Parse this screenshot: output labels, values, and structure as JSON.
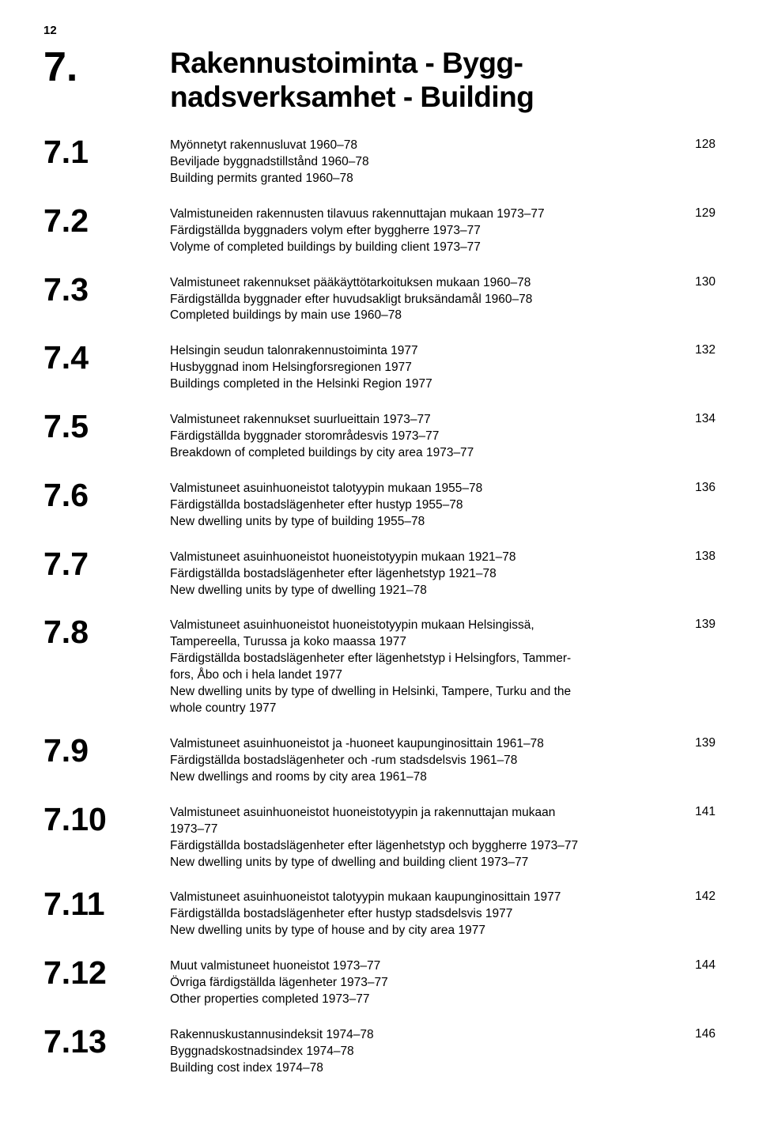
{
  "page_number_top": "12",
  "chapter_number": "7.",
  "chapter_title_line1": "Rakennustoiminta - Bygg-",
  "chapter_title_line2": "nadsverksamhet - Building",
  "typography": {
    "body_fontsize_pt": 15.5,
    "section_num_fontsize_pt": 41,
    "chapter_num_fontsize_pt": 52,
    "title_fontsize_pt": 37,
    "font_family": "Arial",
    "text_color": "#000000",
    "background_color": "#ffffff"
  },
  "entries": [
    {
      "num": "7.1",
      "page": "128",
      "lines": [
        "Myönnetyt rakennusluvat 1960–78",
        "Beviljade byggnadstillstånd 1960–78",
        "Building permits granted 1960–78"
      ]
    },
    {
      "num": "7.2",
      "page": "129",
      "lines": [
        "Valmistuneiden rakennusten tilavuus rakennuttajan mukaan 1973–77",
        "Färdigställda byggnaders volym efter byggherre 1973–77",
        "Volyme of completed buildings by building client 1973–77"
      ]
    },
    {
      "num": "7.3",
      "page": "130",
      "lines": [
        "Valmistuneet rakennukset pääkäyttötarkoituksen mukaan 1960–78",
        "Färdigställda byggnader efter huvudsakligt bruksändamål 1960–78",
        "Completed buildings by main use 1960–78"
      ]
    },
    {
      "num": "7.4",
      "page": "132",
      "lines": [
        "Helsingin seudun talonrakennustoiminta 1977",
        "Husbyggnad inom Helsingforsregionen 1977",
        "Buildings completed in the Helsinki Region 1977"
      ]
    },
    {
      "num": "7.5",
      "page": "134",
      "lines": [
        "Valmistuneet rakennukset suurlueittain 1973–77",
        "Färdigställda byggnader storområdesvis 1973–77",
        "Breakdown of completed buildings by city area 1973–77"
      ]
    },
    {
      "num": "7.6",
      "page": "136",
      "lines": [
        "Valmistuneet asuinhuoneistot talotyypin mukaan 1955–78",
        "Färdigställda bostadslägenheter efter hustyp 1955–78",
        "New dwelling units by type of building 1955–78"
      ]
    },
    {
      "num": "7.7",
      "page": "138",
      "lines": [
        "Valmistuneet asuinhuoneistot huoneistotyypin mukaan 1921–78",
        "Färdigställda bostadslägenheter efter lägenhetstyp 1921–78",
        "New dwelling units by type of dwelling 1921–78"
      ]
    },
    {
      "num": "7.8",
      "page": "139",
      "lines": [
        "Valmistuneet asuinhuoneistot huoneistotyypin mukaan Helsingissä,",
        "Tampereella, Turussa ja koko maassa 1977",
        "Färdigställda bostadslägenheter efter lägenhetstyp i Helsingfors, Tammer-",
        "fors, Åbo och i hela landet 1977",
        "New dwelling units by type of dwelling in Helsinki, Tampere, Turku and the",
        "whole country 1977"
      ]
    },
    {
      "num": "7.9",
      "page": "139",
      "lines": [
        "Valmistuneet asuinhuoneistot ja -huoneet kaupunginosittain 1961–78",
        "Färdigställda bostadslägenheter och -rum stadsdelsvis 1961–78",
        "New dwellings and rooms by city area 1961–78"
      ]
    },
    {
      "num": "7.10",
      "page": "141",
      "lines": [
        "Valmistuneet asuinhuoneistot huoneistotyypin ja rakennuttajan mukaan",
        "1973–77",
        "Färdigställda bostadslägenheter efter lägenhetstyp och byggherre 1973–77",
        "New dwelling units by type of dwelling and building client 1973–77"
      ]
    },
    {
      "num": "7.11",
      "page": "142",
      "lines": [
        "Valmistuneet asuinhuoneistot talotyypin mukaan kaupunginosittain 1977",
        "Färdigställda bostadslägenheter efter hustyp stadsdelsvis 1977",
        "New dwelling units by type of house and by city area 1977"
      ]
    },
    {
      "num": "7.12",
      "page": "144",
      "lines": [
        "Muut valmistuneet huoneistot 1973–77",
        "Övriga färdigställda lägenheter 1973–77",
        "Other properties completed 1973–77"
      ]
    },
    {
      "num": "7.13",
      "page": "146",
      "lines": [
        "Rakennuskustannusindeksit 1974–78",
        "Byggnadskostnadsindex 1974–78",
        "Building cost index 1974–78"
      ]
    }
  ]
}
